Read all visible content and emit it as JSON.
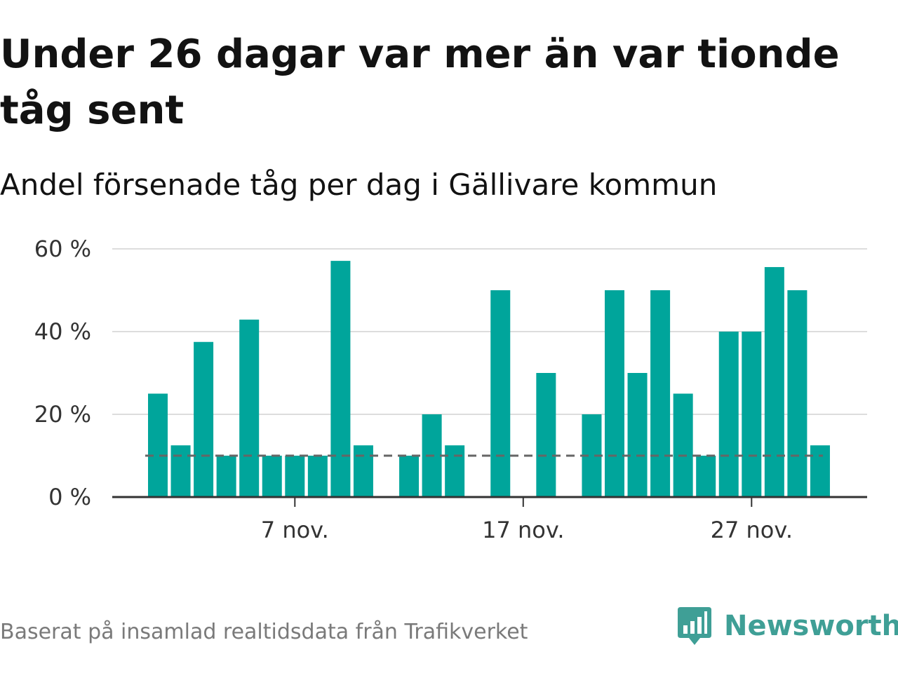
{
  "title": "Under 26 dagar var mer än var tionde tåg sent",
  "subtitle": "Andel försenade tåg per dag i Gällivare kommun",
  "source": "Baserat på insamlad realtidsdata från Trafikverket",
  "logo": {
    "text": "Newsworthy",
    "icon": "newsworthy-bar-chart-icon"
  },
  "colors": {
    "bar": "#00a59b",
    "reference_line": "#666666",
    "grid": "#dddddd",
    "axis": "#333333",
    "logo": "#3f9f96"
  },
  "chart_data": {
    "type": "bar",
    "x_unit": "day of November",
    "categories": [
      1,
      2,
      3,
      4,
      5,
      6,
      7,
      8,
      9,
      10,
      11,
      12,
      13,
      14,
      15,
      16,
      17,
      18,
      19,
      20,
      21,
      22,
      23,
      24,
      25,
      26,
      27,
      28,
      29,
      30
    ],
    "values": [
      25,
      12.5,
      37.5,
      10,
      42.9,
      10,
      10,
      10,
      57.1,
      12.5,
      null,
      10,
      20,
      12.5,
      null,
      50,
      null,
      30,
      null,
      20,
      50,
      30,
      50,
      25,
      10,
      40,
      40,
      55.6,
      50,
      12.5
    ],
    "reference_line": {
      "value": 10,
      "style": "dashed"
    },
    "ylim": [
      0,
      60
    ],
    "y_ticks": [
      0,
      20,
      40,
      60
    ],
    "y_tick_labels": [
      "0 %",
      "20 %",
      "40 %",
      "60 %"
    ],
    "x_ticks": [
      7,
      17,
      27
    ],
    "x_tick_labels": [
      "7 nov.",
      "17 nov.",
      "27 nov."
    ],
    "grid": "horizontal",
    "legend": "none"
  }
}
